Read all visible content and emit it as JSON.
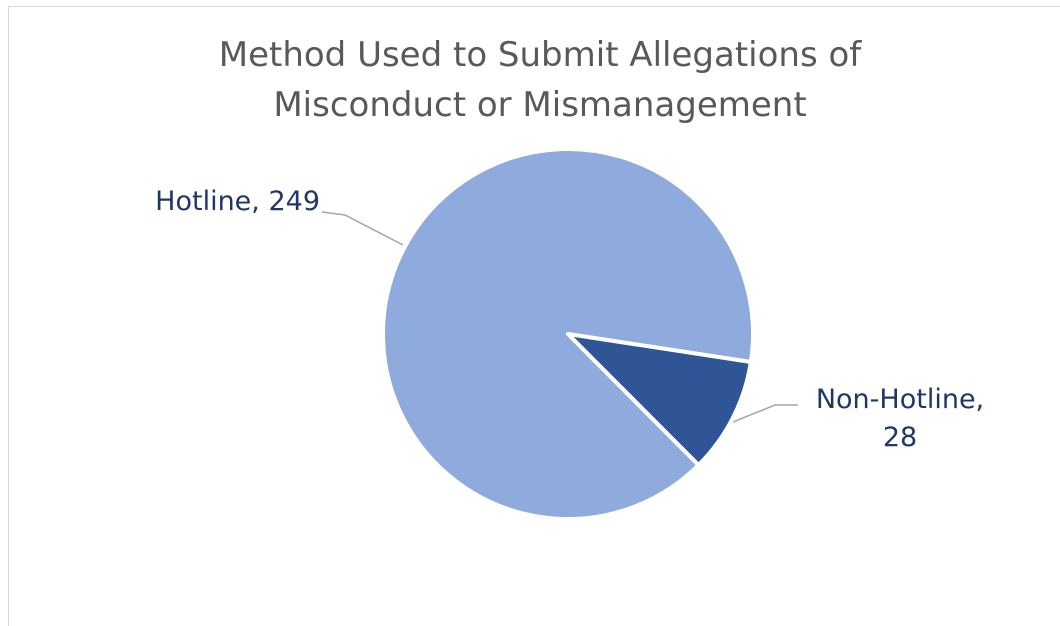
{
  "chart_data": {
    "type": "pie",
    "title": "Method Used to Submit Allegations of Misconduct or Mismanagement",
    "values": [
      249,
      28
    ],
    "value_labels": [
      "Hotline, 249",
      "Non-Hotline, 28"
    ],
    "colors": [
      "#8faadc",
      "#2f5597"
    ]
  }
}
